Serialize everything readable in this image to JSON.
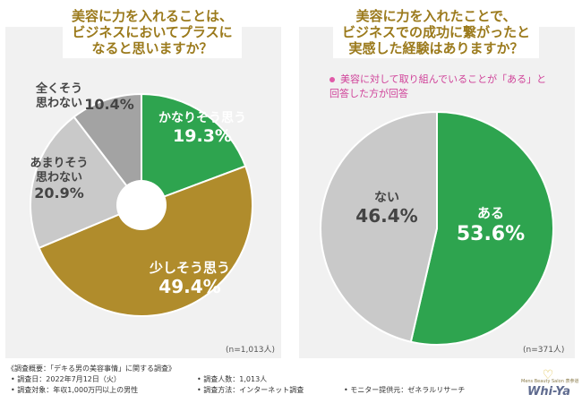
{
  "colors": {
    "green": "#2ea44f",
    "gold": "#b08c2c",
    "light_gray": "#c9c9c9",
    "mid_gray": "#a3a3a3",
    "title": "#9b7a1c",
    "note": "#d0449a"
  },
  "chart_data": [
    {
      "type": "pie",
      "title": "美容に力を入れることは、ビジネスにおいてプラスになると思いますか？",
      "title_lines": [
        "美容に力を入れることは、",
        "ビジネスにおいてプラスに",
        "なると思いますか？"
      ],
      "donut": true,
      "n": "(n=1,013人)",
      "slices": [
        {
          "label_lines": [
            "かなりそう思う"
          ],
          "value": 19.3,
          "display": "19.3%",
          "color": "#2ea44f",
          "text_color": "#ffffff"
        },
        {
          "label_lines": [
            "少しそう思う"
          ],
          "value": 49.4,
          "display": "49.4%",
          "color": "#b08c2c",
          "text_color": "#ffffff"
        },
        {
          "label_lines": [
            "あまりそう",
            "思わない"
          ],
          "value": 20.9,
          "display": "20.9%",
          "color": "#c9c9c9",
          "text_color": "#444444"
        },
        {
          "label_lines": [
            "全くそう",
            "思わない"
          ],
          "value": 10.4,
          "display": "10.4%",
          "color": "#a3a3a3",
          "text_color": "#444444"
        }
      ]
    },
    {
      "type": "pie",
      "title": "美容に力を入れたことで、ビジネスでの成功に繋がったと実感した経験はありますか？",
      "title_lines": [
        "美容に力を入れたことで、",
        "ビジネスでの成功に繋がったと",
        "実感した経験はありますか？"
      ],
      "donut": false,
      "n": "(n=371人)",
      "note_lines": [
        "美容に対して取り組んでいることが「ある」と",
        "回答した方が回答"
      ],
      "slices": [
        {
          "label_lines": [
            "ある"
          ],
          "value": 53.6,
          "display": "53.6%",
          "color": "#2ea44f",
          "text_color": "#ffffff"
        },
        {
          "label_lines": [
            "ない"
          ],
          "value": 46.4,
          "display": "46.4%",
          "color": "#c9c9c9",
          "text_color": "#444444"
        }
      ]
    }
  ],
  "footer": {
    "overview": "《調査概要：「デキる男の美容事情」に関する調査》",
    "date": "• 調査日：2022年7月12日（火）",
    "count": "• 調査人数：1,013人",
    "target": "• 調査対象：年収1,000万円以上の男性",
    "method": "• 調査方法：インターネット調査",
    "monitor": "• モニター提供元：ゼネラルリサーチ"
  },
  "logo": {
    "sub": "Mens Beauty Salon 表参道",
    "name": "Whi-Ya"
  }
}
